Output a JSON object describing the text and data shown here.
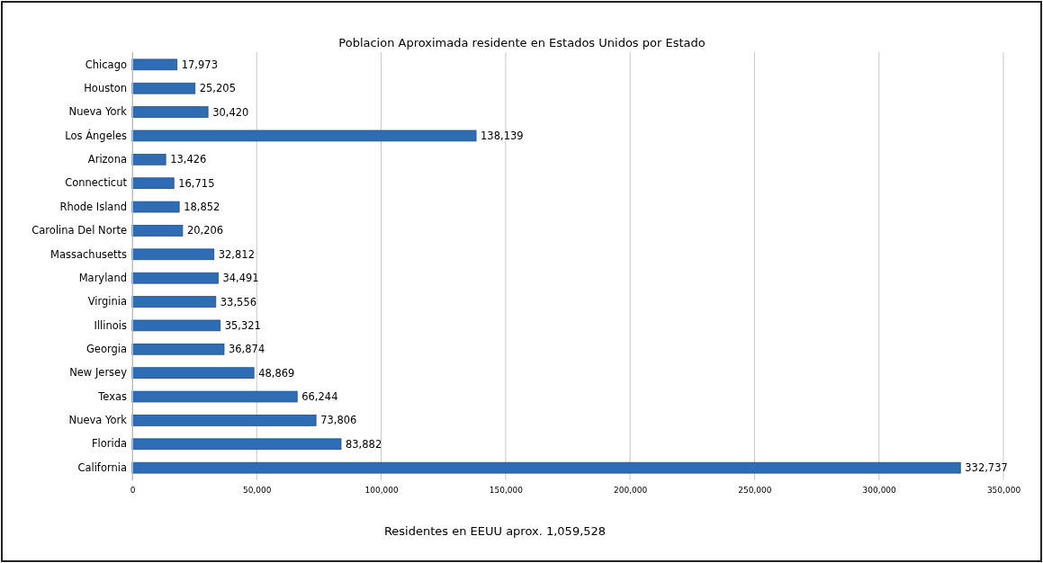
{
  "chart_data": {
    "type": "bar",
    "orientation": "horizontal",
    "title": "Poblacion Aproximada residente en Estados Unidos por Estado",
    "xlabel": "Residentes en EEUU aprox. 1,059,528",
    "categories": [
      "Chicago",
      "Houston",
      "Nueva York",
      "Los Ángeles",
      "Arizona",
      "Connecticut",
      "Rhode Island",
      "Carolina Del Norte",
      "Massachusetts",
      "Maryland",
      "Virginia",
      "Illinois",
      "Georgia",
      "New Jersey",
      "Texas",
      "Nueva York",
      "Florida",
      "California"
    ],
    "values": [
      17973,
      25205,
      30420,
      138139,
      13426,
      16715,
      18852,
      20206,
      32812,
      34491,
      33556,
      35321,
      36874,
      48869,
      66244,
      73806,
      83882,
      332737
    ],
    "value_labels": [
      "17,973",
      "25,205",
      "30,420",
      "138,139",
      "13,426",
      "16,715",
      "18,852",
      "20,206",
      "32,812",
      "34,491",
      "33,556",
      "35,321",
      "36,874",
      "48,869",
      "66,244",
      "73,806",
      "83,882",
      "332,737"
    ],
    "color": "#2e6db4",
    "grid": "x",
    "xlim": [
      0,
      350000
    ],
    "xticks": [
      0,
      {
        "value": 50000,
        "label": "50,000"
      },
      {
        "value": 100000,
        "label": "100,000"
      },
      {
        "value": 150000,
        "label": "150,000"
      },
      {
        "value": 200000,
        "label": "200,000"
      },
      {
        "value": 250000,
        "label": "250,000"
      },
      {
        "value": 300000,
        "label": "300,000"
      },
      {
        "value": 350000,
        "label": "350,000"
      }
    ]
  }
}
